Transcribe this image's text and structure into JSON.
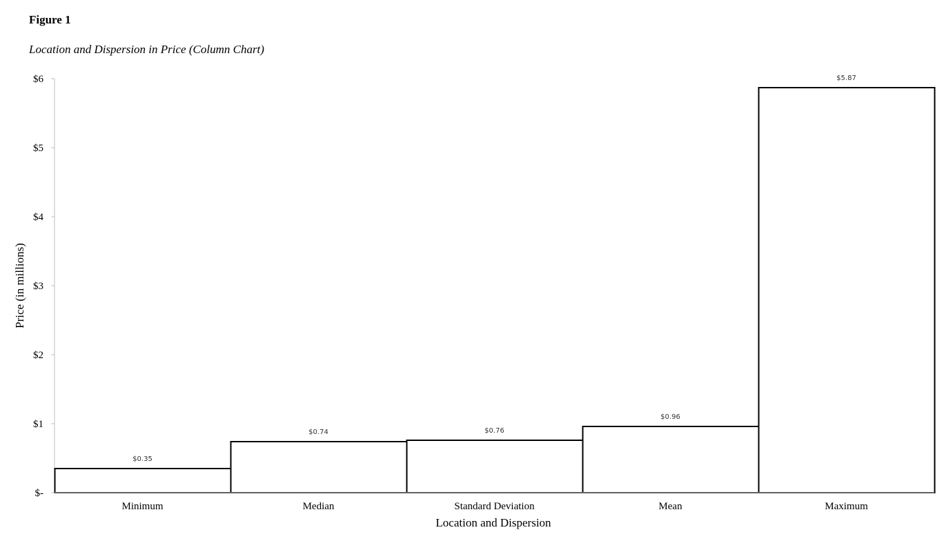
{
  "figure_label": "Figure 1",
  "title": "Location and Dispersion in Price  (Column Chart)",
  "chart_data": {
    "type": "bar",
    "categories": [
      "Minimum",
      "Median",
      "Standard Deviation",
      "Mean",
      "Maximum"
    ],
    "values": [
      0.35,
      0.74,
      0.76,
      0.96,
      5.87
    ],
    "data_labels": [
      "$0.35",
      "$0.74",
      "$0.76",
      "$0.96",
      "$5.87"
    ],
    "ylabel": "Price (in millions)",
    "xlabel": "Location and Dispersion",
    "ylim": [
      0,
      6
    ],
    "yticks": [
      0,
      1,
      2,
      3,
      4,
      5,
      6
    ],
    "ytick_labels": [
      "$-",
      "$1",
      "$2",
      "$3",
      "$4",
      "$5",
      "$6"
    ],
    "grid": false,
    "legend": "none",
    "bar_fill": "#ffffff",
    "bar_stroke": "#000000",
    "axis_color": "#bfbfbf"
  }
}
